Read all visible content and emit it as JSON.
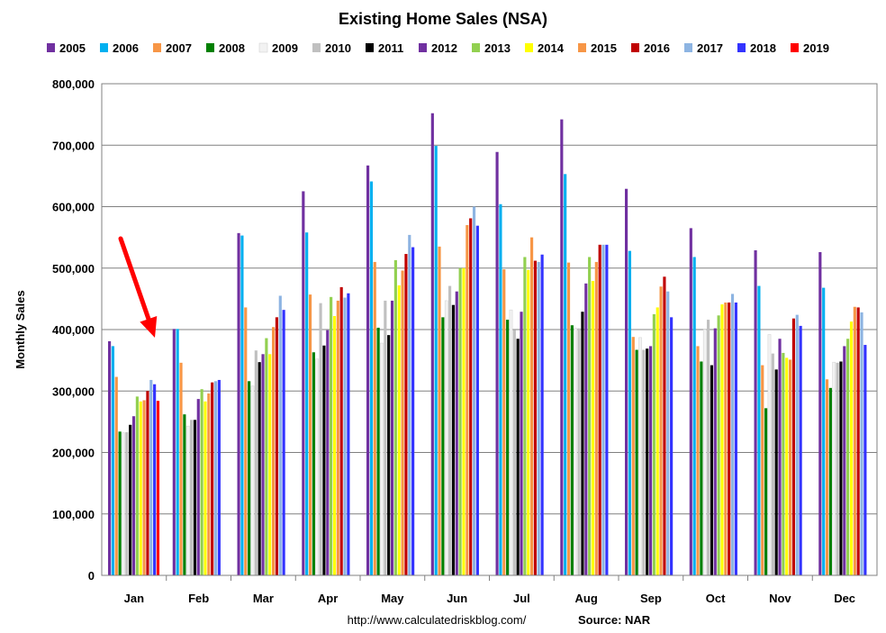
{
  "chart_data": {
    "type": "bar",
    "title": "Existing Home Sales (NSA)",
    "ylabel": "Monthly Sales",
    "xlabel": "",
    "ylim": [
      0,
      800000
    ],
    "yticks": [
      "0",
      "100,000",
      "200,000",
      "300,000",
      "400,000",
      "500,000",
      "600,000",
      "700,000",
      "800,000"
    ],
    "grid": true,
    "legend_position": "top",
    "categories": [
      "Jan",
      "Feb",
      "Mar",
      "Apr",
      "May",
      "Jun",
      "Jul",
      "Aug",
      "Sep",
      "Oct",
      "Nov",
      "Dec"
    ],
    "series": [
      {
        "name": "2005",
        "color": "#7030A0",
        "values": [
          381000,
          401000,
          557000,
          625000,
          667000,
          752000,
          689000,
          742000,
          629000,
          565000,
          529000,
          526000
        ]
      },
      {
        "name": "2006",
        "color": "#00B0F0",
        "values": [
          373000,
          401000,
          553000,
          558000,
          641000,
          699000,
          604000,
          653000,
          528000,
          518000,
          471000,
          468000
        ]
      },
      {
        "name": "2007",
        "color": "#F79646",
        "values": [
          323000,
          346000,
          436000,
          457000,
          510000,
          535000,
          498000,
          509000,
          388000,
          373000,
          342000,
          319000
        ]
      },
      {
        "name": "2008",
        "color": "#008000",
        "values": [
          234000,
          262000,
          316000,
          363000,
          403000,
          420000,
          416000,
          407000,
          367000,
          348000,
          272000,
          305000
        ]
      },
      {
        "name": "2009",
        "color": "#F2F2F2",
        "values": [
          232000,
          243000,
          308000,
          352000,
          378000,
          447000,
          432000,
          402000,
          387000,
          400000,
          392000,
          347000
        ]
      },
      {
        "name": "2010",
        "color": "#C0C0C0",
        "values": [
          233000,
          253000,
          366000,
          443000,
          447000,
          471000,
          399000,
          402000,
          367000,
          416000,
          361000,
          346000
        ]
      },
      {
        "name": "2011",
        "color": "#000000",
        "values": [
          245000,
          253000,
          347000,
          374000,
          391000,
          440000,
          385000,
          429000,
          369000,
          342000,
          335000,
          348000
        ]
      },
      {
        "name": "2012",
        "color": "#7030A0",
        "values": [
          259000,
          287000,
          360000,
          399000,
          447000,
          462000,
          429000,
          475000,
          373000,
          402000,
          385000,
          373000
        ]
      },
      {
        "name": "2013",
        "color": "#92D050",
        "values": [
          291000,
          303000,
          386000,
          453000,
          513000,
          500000,
          518000,
          518000,
          425000,
          423000,
          362000,
          385000
        ]
      },
      {
        "name": "2014",
        "color": "#FFFF00",
        "values": [
          283000,
          283000,
          360000,
          422000,
          472000,
          500000,
          497000,
          479000,
          436000,
          441000,
          354000,
          413000
        ]
      },
      {
        "name": "2015",
        "color": "#F79646",
        "values": [
          285000,
          296000,
          404000,
          447000,
          496000,
          570000,
          550000,
          510000,
          470000,
          444000,
          351000,
          437000
        ]
      },
      {
        "name": "2016",
        "color": "#C00000",
        "values": [
          300000,
          314000,
          420000,
          469000,
          523000,
          581000,
          512000,
          538000,
          486000,
          444000,
          418000,
          436000
        ]
      },
      {
        "name": "2017",
        "color": "#8DB4E2",
        "values": [
          318000,
          316000,
          455000,
          452000,
          554000,
          600000,
          510000,
          538000,
          462000,
          458000,
          424000,
          428000
        ]
      },
      {
        "name": "2018",
        "color": "#3333FF",
        "values": [
          311000,
          318000,
          432000,
          459000,
          534000,
          569000,
          522000,
          538000,
          420000,
          444000,
          406000,
          375000
        ]
      },
      {
        "name": "2019",
        "color": "#FF0000",
        "values": [
          284000,
          null,
          null,
          null,
          null,
          null,
          null,
          null,
          null,
          null,
          null,
          null
        ]
      }
    ],
    "annotations": {
      "arrow_color": "#FF0000"
    },
    "footer_url": "http://www.calculatedriskblog.com/",
    "source": "Source: NAR"
  }
}
